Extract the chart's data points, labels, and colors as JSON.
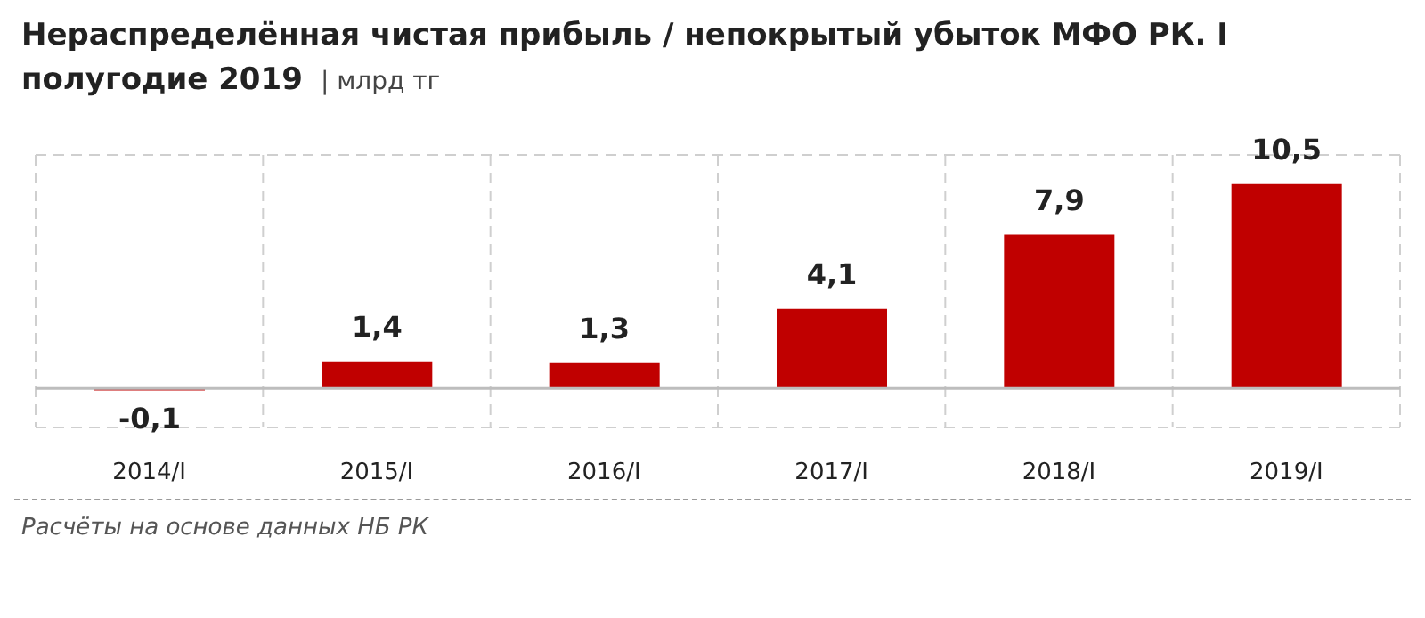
{
  "chart_data": {
    "type": "bar",
    "title": "Нераспределённая чистая прибыль / непокрытый убыток МФО РК. I полугодие 2019",
    "subtitle": "| млрд тг",
    "categories": [
      "2014/I",
      "2015/I",
      "2016/I",
      "2017/I",
      "2018/I",
      "2019/I"
    ],
    "values": [
      -0.1,
      1.4,
      1.3,
      4.1,
      7.9,
      10.5
    ],
    "color": "#c00000",
    "data_labels": true,
    "value_labels": [
      "-0,1",
      "1,4",
      "1,3",
      "4,1",
      "7,9",
      "10,5"
    ],
    "tick_labels": "x",
    "grid": true,
    "annotations": [
      "Расчёты на основе данных НБ РК"
    ]
  }
}
